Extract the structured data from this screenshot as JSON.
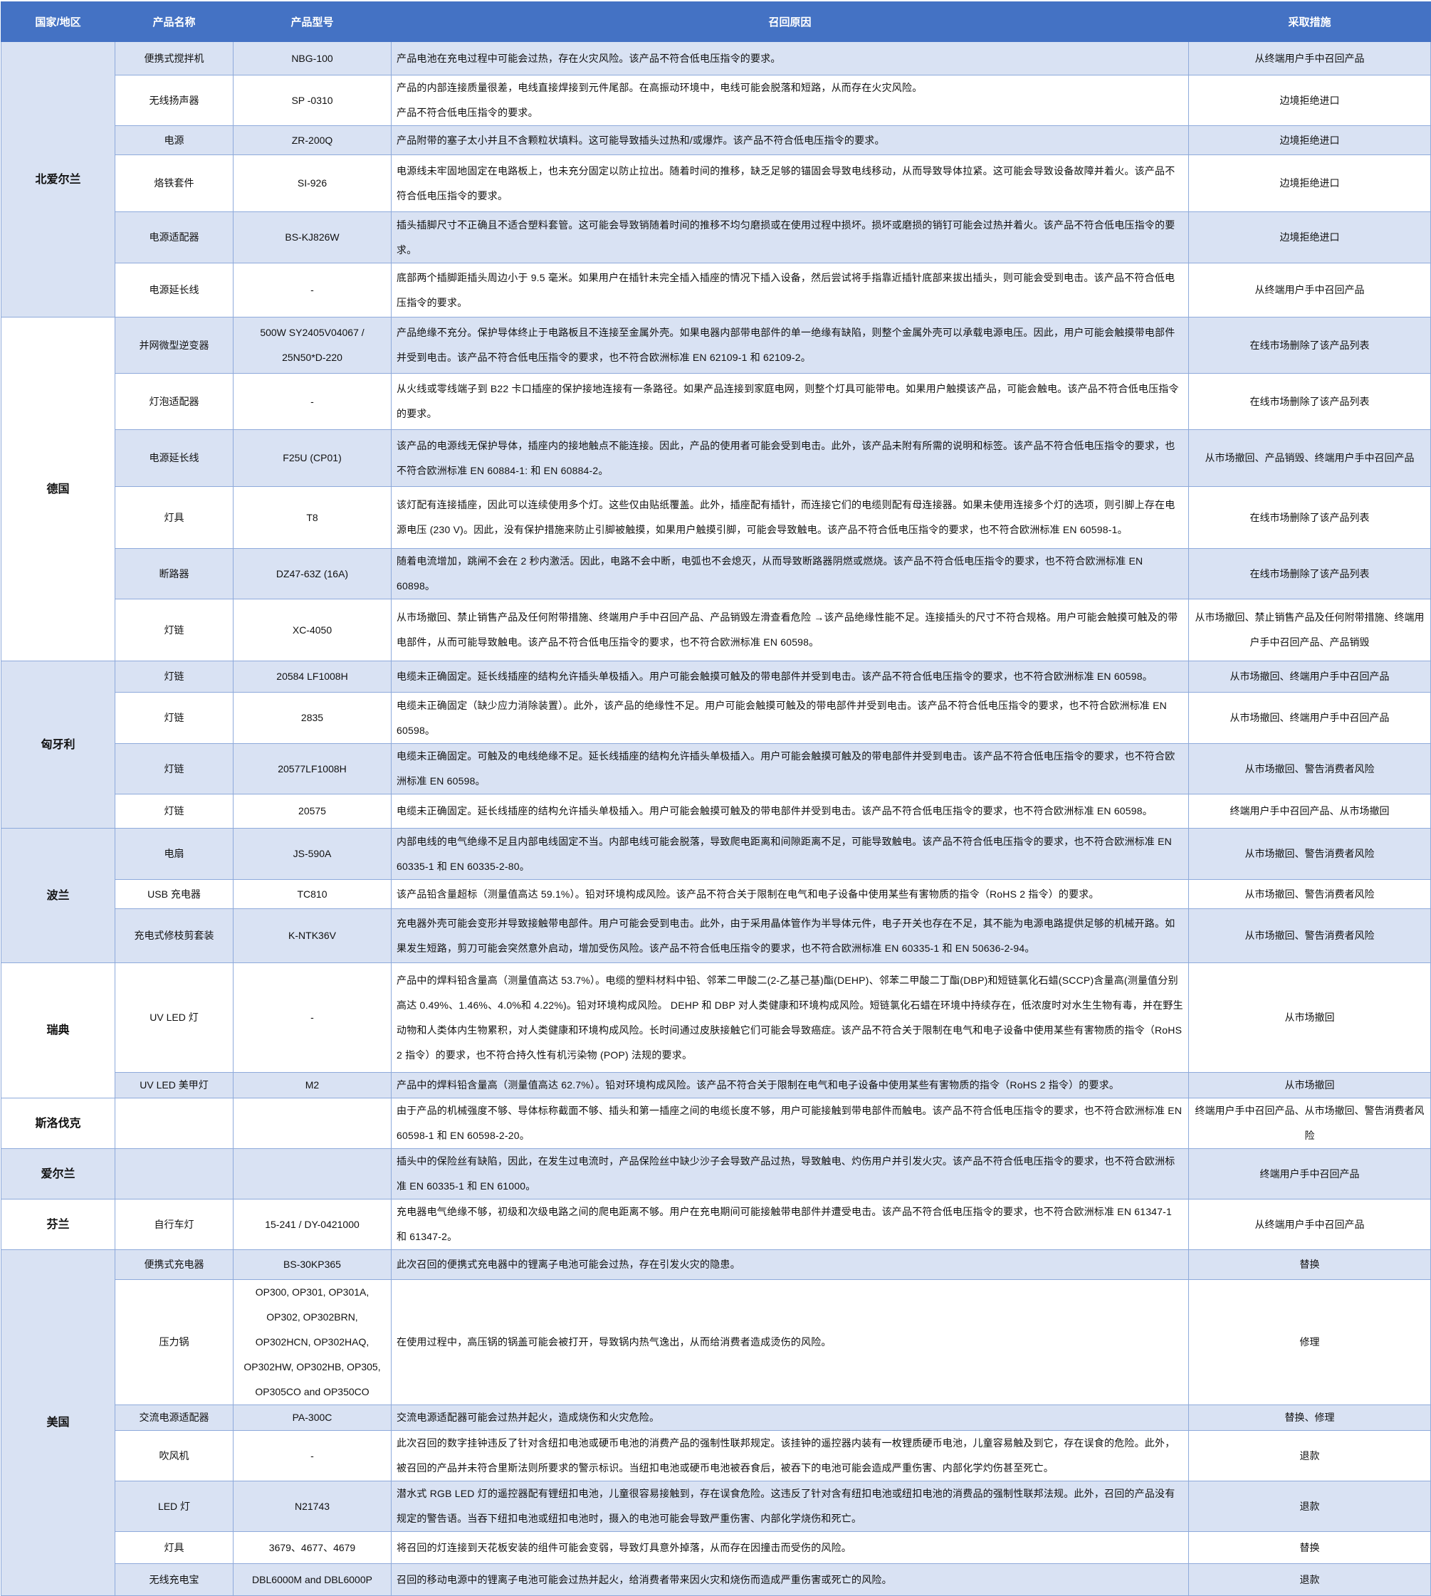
{
  "colors": {
    "header": "#4472C4",
    "row_alt": "#D9E2F3",
    "border": "#8EAADB"
  },
  "headers": [
    "国家/地区",
    "产品名称",
    "产品型号",
    "召回原因",
    "采取措施"
  ],
  "groups": [
    {
      "country": "北爱尔兰",
      "shaded": true,
      "rows": [
        {
          "name": "便携式搅拌机",
          "model": "NBG-100",
          "reason": "产品电池在充电过程中可能会过热，存在火灾风险。该产品不符合低电压指令的要求。",
          "action": "从终端用户手中召回产品",
          "shaded": true
        },
        {
          "name": "无线扬声器",
          "model": "SP -0310",
          "reason": "产品的内部连接质量很差，电线直接焊接到元件尾部。在高振动环境中，电线可能会脱落和短路，从而存在火灾风险。\n产品不符合低电压指令的要求。",
          "action": "边境拒绝进口",
          "shaded": false
        },
        {
          "name": "电源",
          "model": "ZR-200Q",
          "reason": "产品附带的塞子太小并且不含颗粒状填料。这可能导致插头过热和/或爆炸。该产品不符合低电压指令的要求。",
          "action": "边境拒绝进口",
          "shaded": true
        },
        {
          "name": "烙铁套件",
          "model": "SI-926",
          "reason": "电源线未牢固地固定在电路板上，也未充分固定以防止拉出。随着时间的推移，缺乏足够的锚固会导致电线移动，从而导致导体拉紧。这可能会导致设备故障并着火。该产品不符合低电压指令的要求。",
          "action": "边境拒绝进口",
          "shaded": false
        },
        {
          "name": "电源适配器",
          "model": "BS-KJ826W",
          "reason": "插头插脚尺寸不正确且不适合塑料套管。这可能会导致销随着时间的推移不均匀磨损或在使用过程中损坏。损坏或磨损的销钉可能会过热并着火。该产品不符合低电压指令的要求。",
          "action": "边境拒绝进口",
          "shaded": true
        },
        {
          "name": "电源延长线",
          "model": "-",
          "reason": "底部两个插脚距插头周边小于 9.5 毫米。如果用户在插针未完全插入插座的情况下插入设备，然后尝试将手指靠近插针底部来拔出插头，则可能会受到电击。该产品不符合低电压指令的要求。",
          "action": "从终端用户手中召回产品",
          "shaded": false
        }
      ]
    },
    {
      "country": "德国",
      "shaded": false,
      "rows": [
        {
          "name": "并网微型逆变器",
          "model": "500W SY2405V04067 / 25N50*D-220",
          "reason": "产品绝缘不充分。保护导体终止于电路板且不连接至金属外壳。如果电器内部带电部件的单一绝缘有缺陷，则整个金属外壳可以承载电源电压。因此，用户可能会触摸带电部件并受到电击。该产品不符合低电压指令的要求，也不符合欧洲标准 EN 62109-1 和 62109-2。",
          "action": "在线市场删除了该产品列表",
          "shaded": true
        },
        {
          "name": "灯泡适配器",
          "model": "-",
          "reason": "从火线或零线端子到 B22 卡口插座的保护接地连接有一条路径。如果产品连接到家庭电网，则整个灯具可能带电。如果用户触摸该产品，可能会触电。该产品不符合低电压指令的要求。",
          "action": "在线市场删除了该产品列表",
          "shaded": false
        },
        {
          "name": "电源延长线",
          "model": "F25U (CP01)",
          "reason": "该产品的电源线无保护导体，插座内的接地触点不能连接。因此，产品的使用者可能会受到电击。此外，该产品未附有所需的说明和标签。该产品不符合低电压指令的要求，也不符合欧洲标准 EN 60884-1: 和 EN 60884-2。",
          "action": "从市场撤回、产品销毁、终端用户手中召回产品",
          "shaded": true
        },
        {
          "name": "灯具",
          "model": "T8",
          "reason": "该灯配有连接插座，因此可以连续使用多个灯。这些仅由贴纸覆盖。此外，插座配有插针，而连接它们的电缆则配有母连接器。如果未使用连接多个灯的选项，则引脚上存在电源电压 (230 V)。因此，没有保护措施来防止引脚被触摸，如果用户触摸引脚，可能会导致触电。该产品不符合低电压指令的要求，也不符合欧洲标准 EN 60598-1。",
          "action": "在线市场删除了该产品列表",
          "shaded": false
        },
        {
          "name": "断路器",
          "model": "DZ47-63Z (16A)",
          "reason": "随着电流增加，跳闸不会在 2 秒内激活。因此，电路不会中断，电弧也不会熄灭，从而导致断路器阴燃或燃烧。该产品不符合低电压指令的要求，也不符合欧洲标准 EN 60898。",
          "action": "在线市场删除了该产品列表",
          "shaded": true
        },
        {
          "name": "灯链",
          "model": "XC-4050",
          "reason": "从市场撤回、禁止销售产品及任何附带措施、终端用户手中召回产品、产品销毁左滑查看危险 →该产品绝缘性能不足。连接插头的尺寸不符合规格。用户可能会触摸可触及的带电部件，从而可能导致触电。该产品不符合低电压指令的要求，也不符合欧洲标准 EN 60598。",
          "action": "从市场撤回、禁止销售产品及任何附带措施、终端用户手中召回产品、产品销毁",
          "shaded": false
        }
      ]
    },
    {
      "country": "匈牙利",
      "shaded": true,
      "rows": [
        {
          "name": "灯链",
          "model": "20584 LF1008H",
          "reason": "电缆未正确固定。延长线插座的结构允许插头单极插入。用户可能会触摸可触及的带电部件并受到电击。该产品不符合低电压指令的要求，也不符合欧洲标准 EN 60598。",
          "action": "从市场撤回、终端用户手中召回产品",
          "shaded": true
        },
        {
          "name": "灯链",
          "model": "2835",
          "reason": "电缆未正确固定（缺少应力消除装置）。此外，该产品的绝缘性不足。用户可能会触摸可触及的带电部件并受到电击。该产品不符合低电压指令的要求，也不符合欧洲标准 EN 60598。",
          "action": "从市场撤回、终端用户手中召回产品",
          "shaded": false
        },
        {
          "name": "灯链",
          "model": "20577LF1008H",
          "reason": "电缆未正确固定。可触及的电线绝缘不足。延长线插座的结构允许插头单极插入。用户可能会触摸可触及的带电部件并受到电击。该产品不符合低电压指令的要求，也不符合欧洲标准 EN 60598。",
          "action": "从市场撤回、警告消费者风险",
          "shaded": true
        },
        {
          "name": "灯链",
          "model": "20575",
          "reason": "电缆未正确固定。延长线插座的结构允许插头单极插入。用户可能会触摸可触及的带电部件并受到电击。该产品不符合低电压指令的要求，也不符合欧洲标准 EN 60598。",
          "action": "终端用户手中召回产品、从市场撤回",
          "shaded": false
        }
      ]
    },
    {
      "country": "波兰",
      "shaded": true,
      "rows": [
        {
          "name": "电扇",
          "model": "JS-590A",
          "reason": "内部电线的电气绝缘不足且内部电线固定不当。内部电线可能会脱落，导致爬电距离和间隙距离不足，可能导致触电。该产品不符合低电压指令的要求，也不符合欧洲标准 EN 60335-1 和 EN 60335-2-80。",
          "action": "从市场撤回、警告消费者风险",
          "shaded": true
        },
        {
          "name": "USB 充电器",
          "model": "TC810",
          "reason": "该产品铅含量超标（测量值高达 59.1%）。铅对环境构成风险。该产品不符合关于限制在电气和电子设备中使用某些有害物质的指令（RoHS 2 指令）的要求。",
          "action": "从市场撤回、警告消费者风险",
          "shaded": false
        },
        {
          "name": "充电式修枝剪套装",
          "model": "K-NTK36V",
          "reason": "充电器外壳可能会变形并导致接触带电部件。用户可能会受到电击。此外，由于采用晶体管作为半导体元件，电子开关也存在不足，其不能为电源电路提供足够的机械开路。如果发生短路，剪刀可能会突然意外启动，增加受伤风险。该产品不符合低电压指令的要求，也不符合欧洲标准 EN 60335-1 和 EN 50636-2-94。",
          "action": "从市场撤回、警告消费者风险",
          "shaded": true
        }
      ]
    },
    {
      "country": "瑞典",
      "shaded": false,
      "rows": [
        {
          "name": "UV LED 灯",
          "model": "-",
          "reason": "产品中的焊料铅含量高（测量值高达 53.7%）。电缆的塑料材料中铅、邻苯二甲酸二(2-乙基己基)酯(DEHP)、邻苯二甲酸二丁酯(DBP)和短链氯化石蜡(SCCP)含量高(测量值分别高达 0.49%、1.46%、4.0%和 4.22%)。铅对环境构成风险。 DEHP 和 DBP 对人类健康和环境构成风险。短链氯化石蜡在环境中持续存在，低浓度时对水生生物有毒，并在野生动物和人类体内生物累积，对人类健康和环境构成风险。长时间通过皮肤接触它们可能会导致癌症。该产品不符合关于限制在电气和电子设备中使用某些有害物质的指令（RoHS 2 指令）的要求，也不符合持久性有机污染物 (POP) 法规的要求。",
          "action": "从市场撤回",
          "shaded": false
        },
        {
          "name": "UV LED 美甲灯",
          "model": "M2",
          "reason": "产品中的焊料铅含量高（测量值高达 62.7%）。铅对环境构成风险。该产品不符合关于限制在电气和电子设备中使用某些有害物质的指令（RoHS 2 指令）的要求。",
          "action": "从市场撤回",
          "shaded": true
        }
      ]
    },
    {
      "country": "斯洛伐克",
      "shaded": false,
      "rows": [
        {
          "name": "",
          "model": "",
          "reason": "由于产品的机械强度不够、导体标称截面不够、插头和第一插座之间的电缆长度不够，用户可能接触到带电部件而触电。该产品不符合低电压指令的要求，也不符合欧洲标准 EN 60598-1 和 EN 60598-2-20。",
          "action": "终端用户手中召回产品、从市场撤回、警告消费者风险",
          "shaded": false
        }
      ]
    },
    {
      "country": "爱尔兰",
      "shaded": true,
      "rows": [
        {
          "name": "",
          "model": "",
          "reason": "插头中的保险丝有缺陷，因此，在发生过电流时，产品保险丝中缺少沙子会导致产品过热，导致触电、灼伤用户并引发火灾。该产品不符合低电压指令的要求，也不符合欧洲标准 EN 60335-1 和 EN 61000。",
          "action": "终端用户手中召回产品",
          "shaded": true
        }
      ]
    },
    {
      "country": "芬兰",
      "shaded": false,
      "rows": [
        {
          "name": "自行车灯",
          "model": "15-241 / DY-0421000",
          "reason": "充电器电气绝缘不够，初级和次级电路之间的爬电距离不够。用户在充电期间可能接触带电部件并遭受电击。该产品不符合低电压指令的要求，也不符合欧洲标准 EN 61347-1 和 61347-2。",
          "action": "从终端用户手中召回产品",
          "shaded": false
        }
      ]
    },
    {
      "country": "美国",
      "shaded": true,
      "rows": [
        {
          "name": "便携式充电器",
          "model": "BS-30KP365",
          "reason": "此次召回的便携式充电器中的锂离子电池可能会过热，存在引发火灾的隐患。",
          "action": "替换",
          "shaded": true
        },
        {
          "name": "压力锅",
          "model": "OP300, OP301, OP301A, OP302, OP302BRN, OP302HCN, OP302HAQ, OP302HW, OP302HB, OP305, OP305CO and OP350CO",
          "reason": "在使用过程中，高压锅的锅盖可能会被打开，导致锅内热气逸出，从而给消费者造成烫伤的风险。",
          "action": "修理",
          "shaded": false
        },
        {
          "name": "交流电源适配器",
          "model": "PA-300C",
          "reason": "交流电源适配器可能会过热并起火，造成烧伤和火灾危险。",
          "action": "替换、修理",
          "shaded": true
        },
        {
          "name": "吹风机",
          "model": "-",
          "reason": "此次召回的数字挂钟违反了针对含纽扣电池或硬币电池的消费产品的强制性联邦规定。该挂钟的遥控器内装有一枚锂质硬币电池，儿童容易触及到它，存在误食的危险。此外，被召回的产品并未符合里斯法则所要求的警示标识。当纽扣电池或硬币电池被吞食后，被吞下的电池可能会造成严重伤害、内部化学灼伤甚至死亡。",
          "action": "退款",
          "shaded": false
        },
        {
          "name": "LED 灯",
          "model": "N21743",
          "reason": "潜水式 RGB LED 灯的遥控器配有锂纽扣电池，儿童很容易接触到，存在误食危险。这违反了针对含有纽扣电池或纽扣电池的消费品的强制性联邦法规。此外，召回的产品没有规定的警告语。当吞下纽扣电池或纽扣电池时，摄入的电池可能会导致严重伤害、内部化学烧伤和死亡。",
          "action": "退款",
          "shaded": true
        },
        {
          "name": "灯具",
          "model": "3679、4677、4679",
          "reason": "将召回的灯连接到天花板安装的组件可能会变弱，导致灯具意外掉落，从而存在因撞击而受伤的风险。",
          "action": "替换",
          "shaded": false
        },
        {
          "name": "无线充电宝",
          "model": "DBL6000M and DBL6000P",
          "reason": "召回的移动电源中的锂离子电池可能会过热并起火，给消费者带来因火灾和烧伤而造成严重伤害或死亡的风险。",
          "action": "退款",
          "shaded": true
        }
      ]
    }
  ]
}
